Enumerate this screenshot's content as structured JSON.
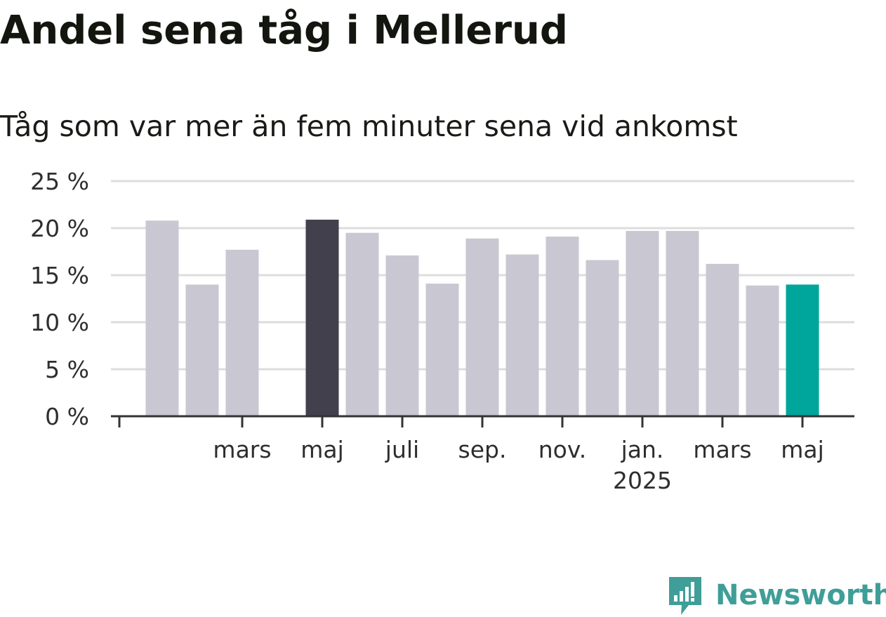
{
  "title": "Andel sena tåg i Mellerud",
  "subtitle": "Tåg som var mer än fem minuter sena vid ankomst",
  "brand": {
    "name": "Newsworthy",
    "color": "#3f9e98"
  },
  "colors": {
    "bar_default": "#c9c8d2",
    "bar_highlight": "#41404c",
    "bar_latest": "#00a59b",
    "grid": "#dddddd",
    "axis": "#333333"
  },
  "chart_data": {
    "type": "bar",
    "title": "Andel sena tåg i Mellerud",
    "subtitle": "Tåg som var mer än fem minuter sena vid ankomst",
    "categories": [
      "2024-01",
      "2024-02",
      "2024-03",
      "2024-04",
      "2024-05",
      "2024-06",
      "2024-07",
      "2024-08",
      "2024-09",
      "2024-10",
      "2024-11",
      "2024-12",
      "2025-01",
      "2025-02",
      "2025-03",
      "2025-04",
      "2025-05"
    ],
    "values": [
      20.8,
      14.0,
      17.7,
      null,
      20.9,
      19.5,
      17.1,
      14.1,
      18.9,
      17.2,
      19.1,
      16.6,
      19.7,
      19.7,
      16.2,
      13.9,
      14.0
    ],
    "highlight": [
      "2024-05",
      "2025-05"
    ],
    "tick_labels": [
      {
        "category": "2024-01",
        "label": ""
      },
      {
        "category": "2024-03",
        "label": "mars"
      },
      {
        "category": "2024-05",
        "label": "maj"
      },
      {
        "category": "2024-07",
        "label": "juli"
      },
      {
        "category": "2024-09",
        "label": "sep."
      },
      {
        "category": "2024-11",
        "label": "nov."
      },
      {
        "category": "2025-01",
        "label": "jan.",
        "year": "2025"
      },
      {
        "category": "2025-03",
        "label": "mars"
      },
      {
        "category": "2025-05",
        "label": "maj"
      }
    ],
    "y_ticks": [
      {
        "value": 0,
        "label": "0 %"
      },
      {
        "value": 5,
        "label": "5 %"
      },
      {
        "value": 10,
        "label": "10 %"
      },
      {
        "value": 15,
        "label": "15 %"
      },
      {
        "value": 20,
        "label": "20 %"
      },
      {
        "value": 25,
        "label": "25 %"
      }
    ],
    "ylim": [
      0,
      25
    ],
    "grid": true,
    "legend": "none"
  }
}
